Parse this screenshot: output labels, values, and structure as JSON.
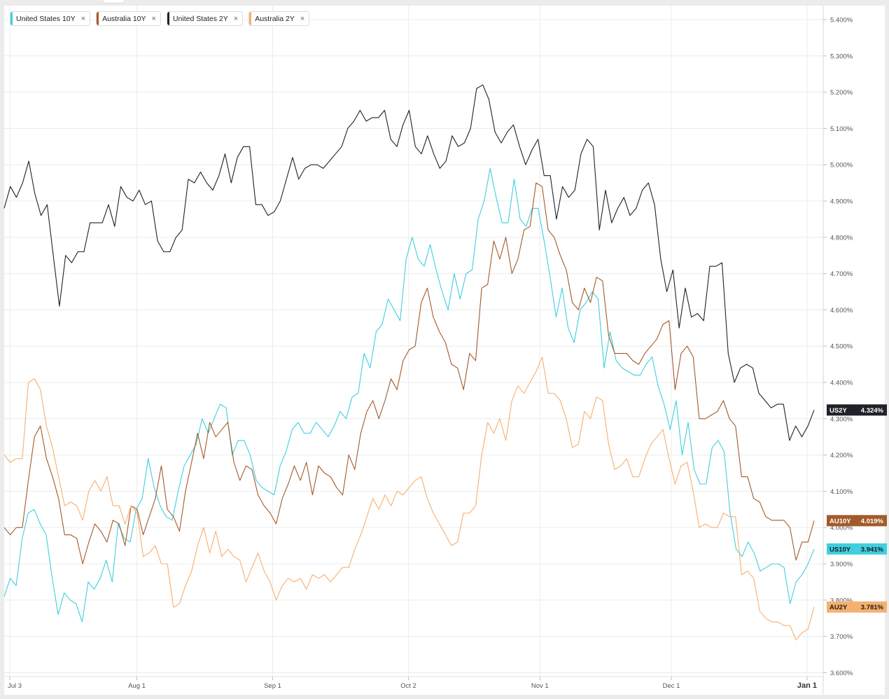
{
  "chart_data": {
    "type": "line",
    "ylim": [
      3.6,
      5.45
    ],
    "y_ticks": [
      "5.400%",
      "5.300%",
      "5.200%",
      "5.100%",
      "5.000%",
      "4.900%",
      "4.800%",
      "4.700%",
      "4.600%",
      "4.500%",
      "4.400%",
      "4.300%",
      "4.200%",
      "4.100%",
      "4.000%",
      "3.900%",
      "3.800%",
      "3.700%",
      "3.600%"
    ],
    "x_ticks": [
      "Jul 3",
      "Aug 1",
      "Sep 1",
      "Oct 2",
      "Nov 1",
      "Dec 1",
      "Jan 1"
    ],
    "x_tick_days": [
      0,
      29,
      60,
      91,
      121,
      151,
      182
    ],
    "grid": true,
    "legend_position": "top-left",
    "series": [
      {
        "name": "United States 10Y",
        "short": "US10Y",
        "last_label": "3.941%",
        "color": "#3fcfdf",
        "values": [
          3.81,
          3.86,
          3.84,
          3.97,
          4.04,
          4.05,
          4.01,
          3.98,
          3.86,
          3.76,
          3.82,
          3.8,
          3.79,
          3.74,
          3.85,
          3.83,
          3.86,
          3.91,
          3.85,
          4.01,
          3.97,
          3.96,
          4.05,
          4.08,
          4.19,
          4.11,
          4.06,
          4.03,
          4.02,
          4.1,
          4.17,
          4.2,
          4.23,
          4.3,
          4.26,
          4.3,
          4.34,
          4.33,
          4.2,
          4.24,
          4.24,
          4.2,
          4.13,
          4.11,
          4.1,
          4.09,
          4.17,
          4.21,
          4.27,
          4.29,
          4.26,
          4.26,
          4.29,
          4.27,
          4.25,
          4.28,
          4.32,
          4.3,
          4.36,
          4.37,
          4.48,
          4.44,
          4.54,
          4.56,
          4.63,
          4.6,
          4.57,
          4.74,
          4.8,
          4.74,
          4.72,
          4.78,
          4.71,
          4.65,
          4.6,
          4.7,
          4.63,
          4.7,
          4.71,
          4.85,
          4.9,
          4.99,
          4.91,
          4.84,
          4.84,
          4.96,
          4.85,
          4.83,
          4.88,
          4.88,
          4.79,
          4.69,
          4.58,
          4.66,
          4.55,
          4.51,
          4.6,
          4.62,
          4.65,
          4.63,
          4.44,
          4.54,
          4.46,
          4.44,
          4.43,
          4.42,
          4.42,
          4.45,
          4.47,
          4.39,
          4.34,
          4.27,
          4.35,
          4.2,
          4.29,
          4.16,
          4.12,
          4.12,
          4.22,
          4.24,
          4.21,
          4.04,
          3.94,
          3.92,
          3.96,
          3.93,
          3.88,
          3.89,
          3.9,
          3.9,
          3.89,
          3.79,
          3.85,
          3.87,
          3.9,
          3.941
        ]
      },
      {
        "name": "Australia 10Y",
        "short": "AU10Y",
        "last_label": "4.019%",
        "color": "#a35a2a",
        "values": [
          4.0,
          3.98,
          4.0,
          4.0,
          4.13,
          4.25,
          4.28,
          4.19,
          4.14,
          4.08,
          3.98,
          3.98,
          3.97,
          3.9,
          3.96,
          4.01,
          3.99,
          3.96,
          4.02,
          4.01,
          3.95,
          4.06,
          4.05,
          3.98,
          4.03,
          4.08,
          4.17,
          4.05,
          4.03,
          3.99,
          4.1,
          4.18,
          4.26,
          4.19,
          4.29,
          4.25,
          4.27,
          4.29,
          4.18,
          4.13,
          4.17,
          4.16,
          4.09,
          4.06,
          4.04,
          4.01,
          4.08,
          4.12,
          4.17,
          4.13,
          4.18,
          4.09,
          4.17,
          4.15,
          4.14,
          4.11,
          4.09,
          4.2,
          4.16,
          4.26,
          4.32,
          4.35,
          4.3,
          4.35,
          4.41,
          4.38,
          4.46,
          4.49,
          4.5,
          4.62,
          4.66,
          4.58,
          4.54,
          4.51,
          4.45,
          4.44,
          4.38,
          4.48,
          4.46,
          4.66,
          4.67,
          4.79,
          4.74,
          4.8,
          4.7,
          4.74,
          4.82,
          4.83,
          4.95,
          4.94,
          4.82,
          4.8,
          4.75,
          4.71,
          4.62,
          4.6,
          4.66,
          4.62,
          4.69,
          4.68,
          4.53,
          4.48,
          4.48,
          4.48,
          4.46,
          4.45,
          4.48,
          4.5,
          4.52,
          4.56,
          4.57,
          4.38,
          4.48,
          4.5,
          4.47,
          4.3,
          4.3,
          4.31,
          4.32,
          4.35,
          4.3,
          4.28,
          4.14,
          4.14,
          4.08,
          4.07,
          4.03,
          4.02,
          4.02,
          4.02,
          4.0,
          3.91,
          3.96,
          3.96,
          4.019
        ]
      },
      {
        "name": "United States 2Y",
        "short": "US2Y",
        "last_label": "4.324%",
        "color": "#1f2228",
        "values": [
          4.88,
          4.94,
          4.91,
          4.95,
          5.01,
          4.92,
          4.86,
          4.89,
          4.75,
          4.61,
          4.75,
          4.73,
          4.76,
          4.76,
          4.84,
          4.84,
          4.84,
          4.89,
          4.83,
          4.94,
          4.91,
          4.9,
          4.93,
          4.89,
          4.9,
          4.79,
          4.76,
          4.76,
          4.8,
          4.82,
          4.96,
          4.95,
          4.98,
          4.95,
          4.93,
          4.97,
          5.03,
          4.95,
          5.02,
          5.05,
          5.05,
          4.89,
          4.89,
          4.86,
          4.87,
          4.9,
          4.96,
          5.02,
          4.96,
          4.99,
          5.0,
          5.0,
          4.99,
          5.01,
          5.03,
          5.05,
          5.1,
          5.12,
          5.15,
          5.12,
          5.13,
          5.13,
          5.15,
          5.07,
          5.05,
          5.11,
          5.15,
          5.05,
          5.03,
          5.08,
          5.03,
          4.99,
          5.01,
          5.08,
          5.05,
          5.06,
          5.1,
          5.21,
          5.22,
          5.18,
          5.09,
          5.06,
          5.09,
          5.11,
          5.05,
          5.0,
          5.04,
          5.07,
          4.97,
          4.97,
          4.85,
          4.94,
          4.91,
          4.93,
          5.03,
          5.07,
          5.05,
          4.82,
          4.93,
          4.84,
          4.88,
          4.91,
          4.86,
          4.88,
          4.93,
          4.95,
          4.89,
          4.74,
          4.65,
          4.71,
          4.55,
          4.66,
          4.58,
          4.59,
          4.57,
          4.72,
          4.72,
          4.73,
          4.48,
          4.4,
          4.44,
          4.45,
          4.44,
          4.37,
          4.35,
          4.33,
          4.34,
          4.34,
          4.24,
          4.28,
          4.25,
          4.28,
          4.324
        ]
      },
      {
        "name": "Australia 2Y",
        "short": "AU2Y",
        "last_label": "3.781%",
        "color": "#f5b070",
        "values": [
          4.2,
          4.18,
          4.19,
          4.19,
          4.4,
          4.41,
          4.38,
          4.28,
          4.22,
          4.14,
          4.06,
          4.07,
          4.06,
          4.02,
          4.1,
          4.13,
          4.1,
          4.14,
          4.06,
          4.06,
          4.01,
          4.06,
          4.04,
          3.92,
          3.93,
          3.95,
          3.9,
          3.9,
          3.78,
          3.79,
          3.84,
          3.88,
          3.95,
          4.0,
          3.93,
          3.99,
          3.92,
          3.94,
          3.92,
          3.91,
          3.85,
          3.89,
          3.93,
          3.88,
          3.85,
          3.8,
          3.84,
          3.86,
          3.85,
          3.86,
          3.83,
          3.87,
          3.86,
          3.87,
          3.85,
          3.87,
          3.89,
          3.89,
          3.94,
          3.98,
          4.03,
          4.08,
          4.05,
          4.09,
          4.06,
          4.1,
          4.09,
          4.11,
          4.13,
          4.14,
          4.08,
          4.04,
          4.01,
          3.98,
          3.95,
          3.96,
          4.04,
          4.04,
          4.06,
          4.2,
          4.29,
          4.26,
          4.3,
          4.24,
          4.35,
          4.39,
          4.37,
          4.4,
          4.43,
          4.47,
          4.37,
          4.37,
          4.35,
          4.3,
          4.22,
          4.23,
          4.32,
          4.3,
          4.36,
          4.35,
          4.23,
          4.16,
          4.17,
          4.19,
          4.14,
          4.14,
          4.19,
          4.23,
          4.25,
          4.27,
          4.19,
          4.12,
          4.17,
          4.18,
          4.1,
          4.0,
          4.01,
          4.0,
          4.0,
          4.04,
          4.03,
          4.03,
          3.87,
          3.88,
          3.86,
          3.77,
          3.75,
          3.74,
          3.74,
          3.73,
          3.73,
          3.69,
          3.71,
          3.72,
          3.781
        ]
      }
    ]
  }
}
